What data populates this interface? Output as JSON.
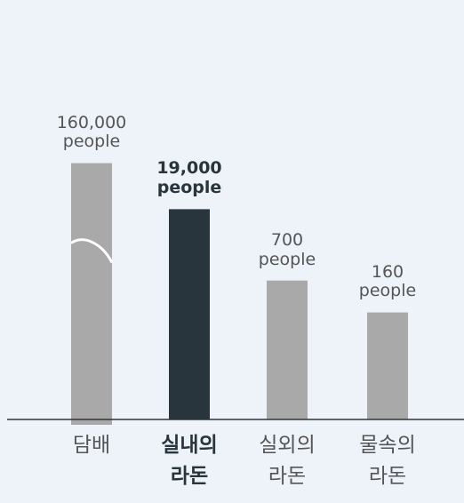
{
  "chart_data": {
    "type": "bar",
    "categories": [
      "담배",
      "실내의\n라돈",
      "실외의\n라돈",
      "물속의\n라돈"
    ],
    "values": [
      160000,
      19000,
      700,
      160
    ],
    "value_labels": [
      "160,000\npeople",
      "19,000\npeople",
      "700\npeople",
      "160\npeople"
    ],
    "colors": [
      "#a9a9a9",
      "#29353c",
      "#a9a9a9",
      "#a9a9a9"
    ],
    "highlight": 1,
    "log_scale": true
  }
}
